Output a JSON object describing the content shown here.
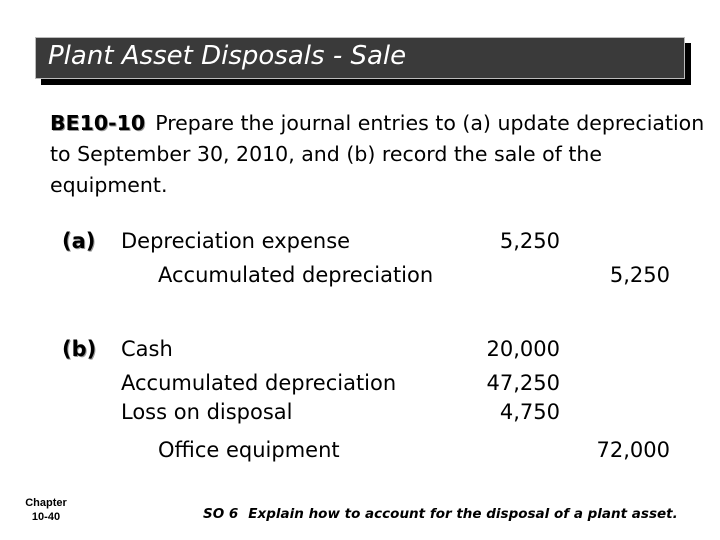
{
  "title": "Plant Asset Disposals - Sale",
  "exercise": {
    "code": "BE10-10",
    "text": "Prepare the journal entries to (a) update depreciation to September 30, 2010, and (b) record the sale of the equipment."
  },
  "entries": {
    "a": {
      "label": "(a)",
      "lines": [
        {
          "account": "Depreciation expense",
          "debit": "5,250",
          "credit": ""
        },
        {
          "account": "Accumulated depreciation",
          "debit": "",
          "credit": "5,250"
        }
      ]
    },
    "b": {
      "label": "(b)",
      "lines": [
        {
          "account": "Cash",
          "debit": "20,000",
          "credit": ""
        },
        {
          "account": "Accumulated depreciation",
          "debit": "47,250",
          "credit": ""
        },
        {
          "account": "Loss on disposal",
          "debit": "4,750",
          "credit": ""
        },
        {
          "account": "Office equipment",
          "debit": "",
          "credit": "72,000"
        }
      ]
    }
  },
  "footer": {
    "chapter": "Chapter",
    "page": "10-40",
    "so_label": "SO 6",
    "so_text": "Explain how to account for the disposal of a plant asset."
  }
}
